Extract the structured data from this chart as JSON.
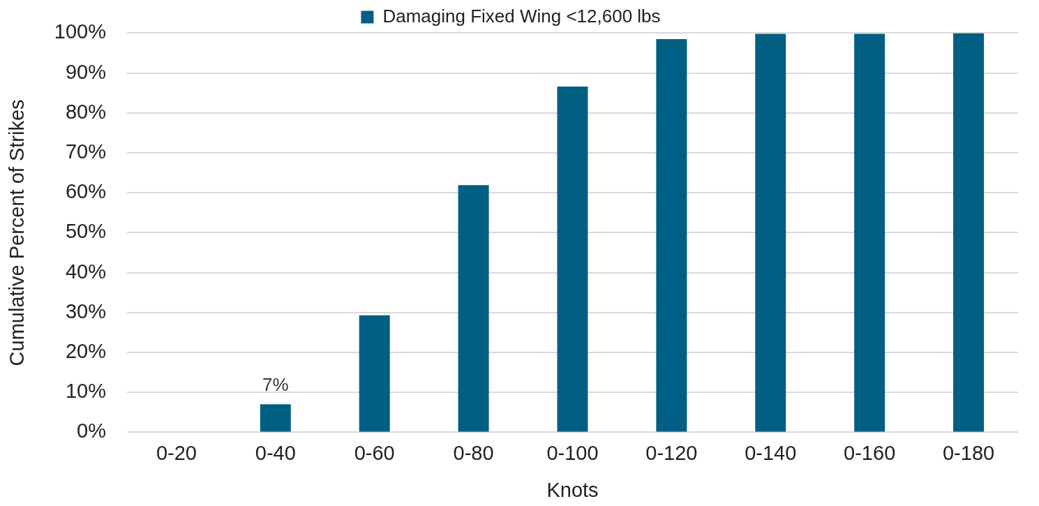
{
  "chart_data": {
    "type": "bar",
    "xlabel": "Knots",
    "ylabel": "Cumulative Percent of Strikes",
    "categories": [
      "0-20",
      "0-40",
      "0-60",
      "0-80",
      "0-100",
      "0-120",
      "0-140",
      "0-160",
      "0-180"
    ],
    "series": [
      {
        "name": "Damaging Fixed Wing <12,600 lbs",
        "color": "#005f83",
        "values": [
          0,
          7,
          29.3,
          61.9,
          86.6,
          98.5,
          99.8,
          99.8,
          100
        ],
        "value_labels": [
          null,
          "7%",
          null,
          null,
          null,
          null,
          null,
          null,
          null
        ]
      }
    ],
    "ylim": [
      0,
      100
    ],
    "yticks": [
      {
        "value": 0,
        "label": "0%"
      },
      {
        "value": 10,
        "label": "10%"
      },
      {
        "value": 20,
        "label": "20%"
      },
      {
        "value": 30,
        "label": "30%"
      },
      {
        "value": 40,
        "label": "40%"
      },
      {
        "value": 50,
        "label": "50%"
      },
      {
        "value": 60,
        "label": "60%"
      },
      {
        "value": 70,
        "label": "70%"
      },
      {
        "value": 80,
        "label": "80%"
      },
      {
        "value": 90,
        "label": "90%"
      },
      {
        "value": 100,
        "label": "100%"
      }
    ],
    "grid": "y",
    "legend": "top"
  }
}
